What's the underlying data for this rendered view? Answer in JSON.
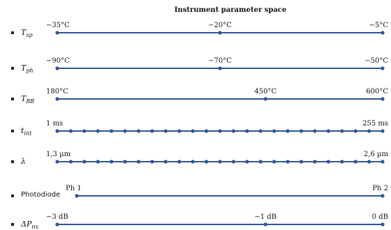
{
  "title": "Instrument parameter space",
  "line_color": "#2e5597",
  "params": [
    {
      "id": "tsp",
      "label_main": "T",
      "label_sub": "sp",
      "label_sup": "",
      "plain": false,
      "marks": [
        {
          "text": "−35°C",
          "pos": 0
        },
        {
          "text": "−20°C",
          "pos": 0.5
        },
        {
          "text": "−5°C",
          "pos": 1
        }
      ],
      "points": 3
    },
    {
      "id": "tph",
      "label_main": "T",
      "label_sub": "ph",
      "label_sup": "",
      "plain": false,
      "marks": [
        {
          "text": "−90°C",
          "pos": 0
        },
        {
          "text": "−70°C",
          "pos": 0.5
        },
        {
          "text": "−50°C",
          "pos": 1
        }
      ],
      "points": 3
    },
    {
      "id": "tbb",
      "label_main": "T",
      "label_sub": "BB",
      "label_sup": "",
      "plain": false,
      "marks": [
        {
          "text": "180°C",
          "pos": 0
        },
        {
          "text": "450°C",
          "pos": 0.64
        },
        {
          "text": "600°C",
          "pos": 1
        }
      ],
      "points": 3
    },
    {
      "id": "tint",
      "label_main": "t",
      "label_sub": "int",
      "label_sup": "",
      "plain": false,
      "marks": [
        {
          "text": "1 ms",
          "pos": 0
        },
        {
          "text": "255 ms",
          "pos": 1
        }
      ],
      "points": 25
    },
    {
      "id": "lambda",
      "label_main": "λ",
      "label_sub": "",
      "label_sup": "",
      "plain": false,
      "marks": [
        {
          "text": "1,3 µm",
          "pos": 0
        },
        {
          "text": "2,6 µm",
          "pos": 1
        }
      ],
      "points": 25
    },
    {
      "id": "photodiode",
      "label_main": "Photodiode",
      "label_sub": "",
      "label_sup": "",
      "plain": true,
      "marks": [
        {
          "text": "Ph 1",
          "pos": 0
        },
        {
          "text": "Ph 2",
          "pos": 1
        }
      ],
      "points": 2
    },
    {
      "id": "dpnx",
      "label_main": "ΔP",
      "label_sub": "nx",
      "label_sup": "",
      "plain": false,
      "marks": [
        {
          "text": "−3 dB",
          "pos": 0
        },
        {
          "text": "−1 dB",
          "pos": 0.64
        },
        {
          "text": "0 dB",
          "pos": 1
        }
      ],
      "points": 3
    }
  ]
}
